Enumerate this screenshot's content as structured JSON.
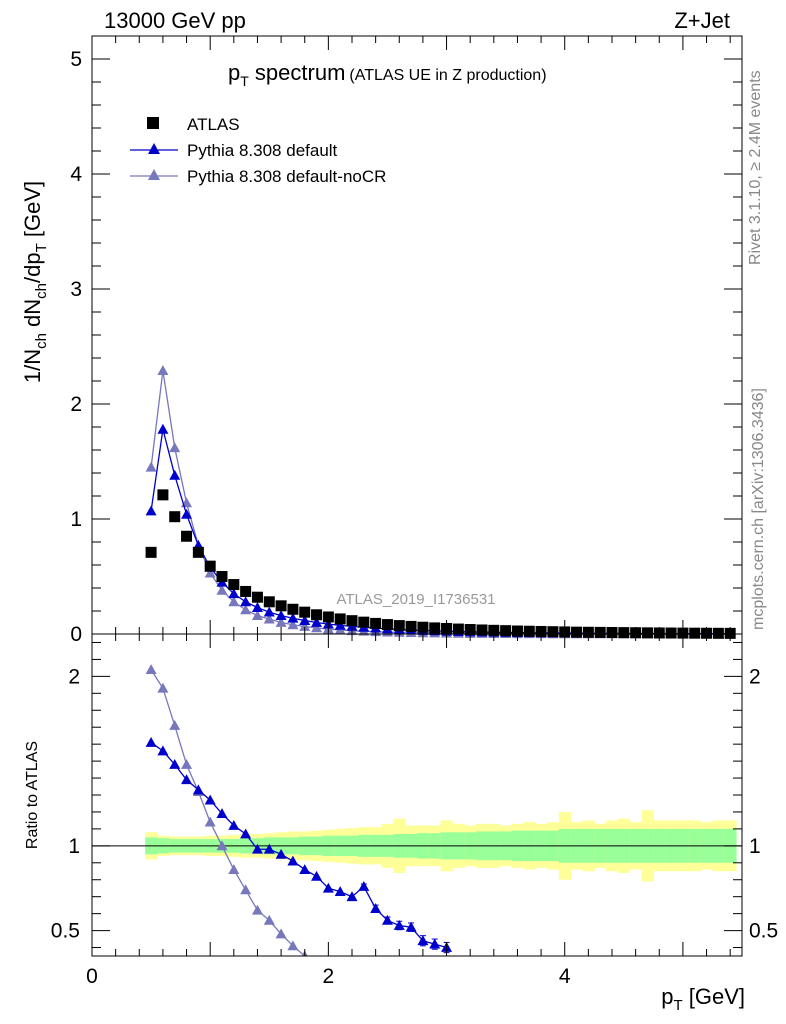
{
  "header": {
    "energy": "13000 GeV pp",
    "process": "Z+Jet"
  },
  "side": {
    "rivet": "Rivet 3.1.10, ≥ 2.4M events",
    "mcplots": "mcplots.cern.ch [arXiv:1306.3436]"
  },
  "colors": {
    "atlas": "#000000",
    "default": "#0000cc",
    "nocr": "#7777bb",
    "band_inner": "#99ff99",
    "band_outer": "#ffff99"
  },
  "chart_data": [
    {
      "type": "scatter",
      "title": "p_T spectrum",
      "title_main": "p",
      "title_sub": "T",
      "title_rest": " spectrum",
      "title_note": "(ATLAS UE in Z production)",
      "watermark": "ATLAS_2019_I1736531",
      "ylabel": "1/N_ch dN_ch/dp_T [GeV]",
      "ylim": [
        0,
        5.2
      ],
      "xlim": [
        0,
        5.5
      ],
      "yticks": [
        "0",
        "1",
        "2",
        "3",
        "4",
        "5"
      ],
      "legend_placement": "top-left",
      "x": [
        0.5,
        0.6,
        0.7,
        0.8,
        0.9,
        1.0,
        1.1,
        1.2,
        1.3,
        1.4,
        1.5,
        1.6,
        1.7,
        1.8,
        1.9,
        2.0,
        2.1,
        2.2,
        2.3,
        2.4,
        2.5,
        2.6,
        2.7,
        2.8,
        2.9,
        3.0,
        3.1,
        3.2,
        3.3,
        3.4,
        3.5,
        3.6,
        3.7,
        3.8,
        3.9,
        4.0,
        4.1,
        4.2,
        4.3,
        4.4,
        4.5,
        4.6,
        4.7,
        4.8,
        4.9,
        5.0,
        5.1,
        5.2,
        5.3,
        5.4
      ],
      "series": [
        {
          "name": "ATLAS",
          "marker": "square",
          "values": [
            0.71,
            1.21,
            1.02,
            0.85,
            0.71,
            0.59,
            0.5,
            0.43,
            0.37,
            0.32,
            0.28,
            0.245,
            0.215,
            0.19,
            0.167,
            0.148,
            0.131,
            0.116,
            0.103,
            0.092,
            0.082,
            0.073,
            0.066,
            0.059,
            0.053,
            0.048,
            0.043,
            0.039,
            0.035,
            0.032,
            0.029,
            0.026,
            0.024,
            0.022,
            0.02,
            0.018,
            0.016,
            0.015,
            0.014,
            0.013,
            0.012,
            0.011,
            0.01,
            0.009,
            0.0085,
            0.0078,
            0.0072,
            0.0066,
            0.006,
            0.0055
          ]
        },
        {
          "name": "Pythia 8.308 default",
          "marker": "triangle",
          "values": [
            1.07,
            1.78,
            1.38,
            1.04,
            0.77,
            0.58,
            0.45,
            0.35,
            0.28,
            0.23,
            0.19,
            0.16,
            0.137,
            0.117,
            0.1,
            0.086,
            0.075,
            0.066,
            0.058,
            0.051,
            0.045,
            0.04,
            0.035,
            0.031,
            0.027,
            0.024,
            0.021,
            0.019,
            0.017,
            0.015,
            0.013,
            0.012,
            0.011,
            0.01,
            0.009,
            0.008,
            0.007,
            0.0065,
            0.006,
            0.0055,
            0.005,
            0.0045,
            0.004,
            0.0037,
            0.0034,
            0.0031,
            0.0028,
            0.0026,
            0.0024,
            0.0022
          ]
        },
        {
          "name": "Pythia 8.308 default-noCR",
          "marker": "triangle",
          "values": [
            1.45,
            2.29,
            1.62,
            1.14,
            0.77,
            0.53,
            0.38,
            0.28,
            0.21,
            0.16,
            0.13,
            0.1,
            0.08,
            0.065,
            0.053,
            0.043,
            0.035,
            0.029,
            0.024,
            0.02,
            0.017,
            0.014,
            0.012,
            0.01,
            0.0085,
            0.0072,
            0.006,
            0.005,
            0.0043,
            0.0036,
            0.003,
            0.0026,
            0.0022,
            0.0019,
            0.0016,
            0.0014,
            0.0012,
            0.001,
            0.0009,
            0.0008,
            0.0007,
            0.0006,
            0.0005,
            0.00045,
            0.0004,
            0.00035,
            0.0003,
            0.00027,
            0.00024,
            0.0002
          ]
        }
      ]
    },
    {
      "type": "line",
      "ylabel": "Ratio to ATLAS",
      "xlabel": "p_T [GeV]",
      "xlabel_main": "p",
      "xlabel_sub": "T",
      "xlabel_rest": " [GeV]",
      "ylim": [
        0.35,
        2.25
      ],
      "xlim": [
        0,
        5.5
      ],
      "yticks": [
        "0.5",
        "1",
        "2"
      ],
      "xticks": [
        "0",
        "2",
        "4"
      ],
      "reference_line": 1,
      "band_x": [
        0.5,
        0.6,
        0.7,
        0.8,
        0.9,
        1.0,
        1.1,
        1.2,
        1.3,
        1.4,
        1.5,
        1.6,
        1.7,
        1.8,
        1.9,
        2.0,
        2.1,
        2.2,
        2.3,
        2.4,
        2.5,
        2.6,
        2.7,
        2.8,
        2.9,
        3.0,
        3.1,
        3.2,
        3.3,
        3.4,
        3.5,
        3.6,
        3.7,
        3.8,
        3.9,
        4.0,
        4.1,
        4.2,
        4.3,
        4.4,
        4.5,
        4.6,
        4.7,
        4.8,
        4.9,
        5.0,
        5.1,
        5.2,
        5.3,
        5.4
      ],
      "band_inner_halfwidth": [
        0.05,
        0.045,
        0.04,
        0.04,
        0.04,
        0.04,
        0.04,
        0.04,
        0.045,
        0.045,
        0.05,
        0.05,
        0.05,
        0.055,
        0.055,
        0.06,
        0.06,
        0.06,
        0.065,
        0.065,
        0.065,
        0.07,
        0.07,
        0.075,
        0.075,
        0.08,
        0.08,
        0.08,
        0.085,
        0.085,
        0.085,
        0.09,
        0.09,
        0.09,
        0.09,
        0.1,
        0.1,
        0.1,
        0.1,
        0.1,
        0.1,
        0.1,
        0.1,
        0.1,
        0.1,
        0.1,
        0.1,
        0.1,
        0.1,
        0.1
      ],
      "band_outer_halfwidth": [
        0.08,
        0.06,
        0.055,
        0.055,
        0.055,
        0.06,
        0.06,
        0.065,
        0.07,
        0.07,
        0.075,
        0.08,
        0.085,
        0.085,
        0.09,
        0.095,
        0.1,
        0.105,
        0.11,
        0.11,
        0.13,
        0.16,
        0.12,
        0.12,
        0.12,
        0.15,
        0.13,
        0.12,
        0.13,
        0.13,
        0.12,
        0.13,
        0.14,
        0.13,
        0.14,
        0.2,
        0.14,
        0.15,
        0.13,
        0.15,
        0.16,
        0.14,
        0.21,
        0.15,
        0.15,
        0.15,
        0.15,
        0.14,
        0.15,
        0.15
      ],
      "series": [
        {
          "name": "Pythia 8.308 default",
          "x": [
            0.5,
            0.6,
            0.7,
            0.8,
            0.9,
            1.0,
            1.1,
            1.2,
            1.3,
            1.4,
            1.5,
            1.6,
            1.7,
            1.8,
            1.9,
            2.0,
            2.1,
            2.2,
            2.3,
            2.4,
            2.5,
            2.6,
            2.7,
            2.8,
            2.9,
            3.0
          ],
          "values": [
            1.61,
            1.56,
            1.48,
            1.39,
            1.33,
            1.27,
            1.19,
            1.12,
            1.07,
            0.98,
            0.98,
            0.95,
            0.91,
            0.86,
            0.82,
            0.75,
            0.73,
            0.7,
            0.76,
            0.63,
            0.56,
            0.53,
            0.52,
            0.44,
            0.42,
            0.4
          ],
          "errors": [
            0.01,
            0.01,
            0.01,
            0.01,
            0.01,
            0.01,
            0.01,
            0.01,
            0.01,
            0.01,
            0.01,
            0.01,
            0.01,
            0.01,
            0.01,
            0.01,
            0.01,
            0.01,
            0.015,
            0.02,
            0.02,
            0.025,
            0.025,
            0.03,
            0.03,
            0.03
          ]
        },
        {
          "name": "Pythia 8.308 default-noCR",
          "x": [
            0.5,
            0.6,
            0.7,
            0.8,
            0.9,
            1.0,
            1.1,
            1.2,
            1.3,
            1.4,
            1.5,
            1.6,
            1.7,
            1.8
          ],
          "values": [
            2.04,
            1.93,
            1.71,
            1.48,
            1.32,
            1.14,
            1.0,
            0.86,
            0.74,
            0.62,
            0.56,
            0.48,
            0.41,
            0.35
          ],
          "errors": [
            0.01,
            0.01,
            0.01,
            0.01,
            0.01,
            0.01,
            0.01,
            0.01,
            0.01,
            0.01,
            0.01,
            0.01,
            0.01,
            0.01
          ]
        }
      ]
    }
  ]
}
